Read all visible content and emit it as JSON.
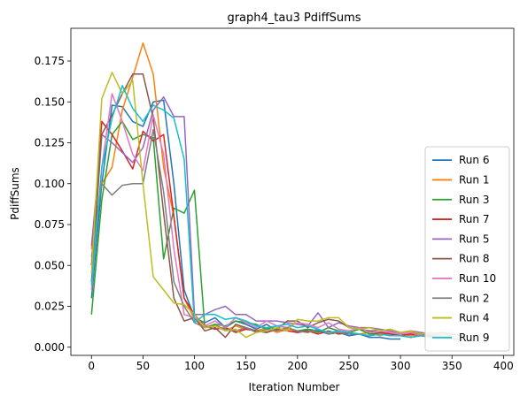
{
  "chart_data": {
    "type": "line",
    "title": "graph4_tau3 PdiffSums",
    "xlabel": "Iteration Number",
    "ylabel": "PdiffSums",
    "xlim": [
      -20,
      410
    ],
    "ylim": [
      -0.005,
      0.195
    ],
    "xticks": [
      0,
      50,
      100,
      150,
      200,
      250,
      300,
      350,
      400
    ],
    "xtick_labels": [
      "0",
      "50",
      "100",
      "150",
      "200",
      "250",
      "300",
      "350",
      "400"
    ],
    "yticks": [
      0.0,
      0.025,
      0.05,
      0.075,
      0.1,
      0.125,
      0.15,
      0.175
    ],
    "ytick_labels": [
      "0.000",
      "0.025",
      "0.050",
      "0.075",
      "0.100",
      "0.125",
      "0.150",
      "0.175"
    ],
    "grid": false,
    "legend_position": "lower-right",
    "series": [
      {
        "name": "Run 6",
        "color": "#1f77b4",
        "x": [
          0,
          10,
          20,
          30,
          40,
          50,
          60,
          70,
          80,
          90,
          100,
          110,
          120,
          130,
          140,
          150,
          160,
          170,
          180,
          190,
          200,
          210,
          220,
          230,
          240,
          250,
          260,
          270,
          280,
          290,
          300
        ],
        "y": [
          0.03,
          0.1,
          0.148,
          0.147,
          0.138,
          0.135,
          0.15,
          0.151,
          0.1,
          0.035,
          0.018,
          0.015,
          0.018,
          0.012,
          0.016,
          0.014,
          0.011,
          0.014,
          0.01,
          0.012,
          0.009,
          0.011,
          0.01,
          0.008,
          0.009,
          0.007,
          0.008,
          0.006,
          0.006,
          0.005,
          0.005
        ]
      },
      {
        "name": "Run 1",
        "color": "#ff7f0e",
        "x": [
          0,
          10,
          20,
          30,
          40,
          50,
          60,
          70,
          80,
          90,
          100,
          110,
          120,
          130,
          140,
          150,
          160,
          170,
          180,
          190,
          200,
          210,
          220,
          230,
          240,
          250,
          260,
          270,
          280,
          290,
          300,
          310,
          320,
          330,
          340,
          350
        ],
        "y": [
          0.06,
          0.1,
          0.11,
          0.145,
          0.165,
          0.186,
          0.167,
          0.11,
          0.08,
          0.03,
          0.017,
          0.012,
          0.014,
          0.01,
          0.013,
          0.011,
          0.01,
          0.012,
          0.009,
          0.011,
          0.01,
          0.009,
          0.011,
          0.008,
          0.01,
          0.009,
          0.008,
          0.009,
          0.007,
          0.009,
          0.008,
          0.007,
          0.008,
          0.006,
          0.007,
          0.006
        ]
      },
      {
        "name": "Run 3",
        "color": "#2ca02c",
        "x": [
          0,
          10,
          20,
          30,
          40,
          50,
          60,
          70,
          80,
          90,
          100,
          110,
          120,
          130,
          140,
          150,
          160,
          170,
          180,
          190,
          200,
          210,
          220,
          230,
          240,
          250,
          260,
          270,
          280,
          290,
          300,
          310,
          320,
          330,
          340
        ],
        "y": [
          0.02,
          0.09,
          0.13,
          0.138,
          0.127,
          0.13,
          0.128,
          0.054,
          0.085,
          0.082,
          0.096,
          0.012,
          0.014,
          0.013,
          0.016,
          0.015,
          0.014,
          0.011,
          0.013,
          0.012,
          0.01,
          0.011,
          0.009,
          0.012,
          0.01,
          0.009,
          0.011,
          0.008,
          0.009,
          0.008,
          0.007,
          0.008,
          0.007,
          0.006,
          0.006
        ]
      },
      {
        "name": "Run 7",
        "color": "#d62728",
        "x": [
          0,
          10,
          20,
          30,
          40,
          50,
          60,
          70,
          80,
          90,
          100,
          110,
          120,
          130,
          140,
          150,
          160,
          170,
          180,
          190,
          200,
          210,
          220,
          230,
          240,
          250,
          260,
          270,
          280,
          290,
          300,
          310,
          320,
          330
        ],
        "y": [
          0.05,
          0.138,
          0.13,
          0.12,
          0.109,
          0.132,
          0.126,
          0.13,
          0.08,
          0.03,
          0.02,
          0.013,
          0.011,
          0.012,
          0.009,
          0.011,
          0.01,
          0.009,
          0.011,
          0.01,
          0.009,
          0.01,
          0.008,
          0.01,
          0.008,
          0.009,
          0.008,
          0.007,
          0.009,
          0.008,
          0.007,
          0.008,
          0.007,
          0.006
        ]
      },
      {
        "name": "Run 5",
        "color": "#9467bd",
        "x": [
          0,
          10,
          20,
          30,
          40,
          50,
          60,
          70,
          80,
          90,
          100,
          110,
          120,
          130,
          140,
          150,
          160,
          170,
          180,
          190,
          200,
          210,
          220,
          230,
          240,
          250,
          260,
          270,
          280,
          290,
          300,
          310,
          320,
          330,
          340,
          350,
          360
        ],
        "y": [
          0.062,
          0.13,
          0.125,
          0.119,
          0.113,
          0.122,
          0.145,
          0.153,
          0.141,
          0.141,
          0.02,
          0.02,
          0.023,
          0.025,
          0.02,
          0.02,
          0.016,
          0.016,
          0.016,
          0.015,
          0.014,
          0.013,
          0.021,
          0.012,
          0.015,
          0.013,
          0.012,
          0.012,
          0.011,
          0.01,
          0.009,
          0.01,
          0.009,
          0.008,
          0.009,
          0.008,
          0.007
        ]
      },
      {
        "name": "Run 8",
        "color": "#8c564b",
        "x": [
          0,
          10,
          20,
          30,
          40,
          50,
          60,
          70,
          80,
          90,
          100,
          110,
          120,
          130,
          140,
          150,
          160,
          170,
          180,
          190,
          200,
          210,
          220,
          230,
          240,
          250,
          260,
          270,
          280,
          290,
          300,
          310,
          320,
          330,
          340
        ],
        "y": [
          0.04,
          0.13,
          0.142,
          0.155,
          0.167,
          0.167,
          0.14,
          0.082,
          0.03,
          0.016,
          0.018,
          0.01,
          0.012,
          0.006,
          0.014,
          0.012,
          0.01,
          0.009,
          0.011,
          0.016,
          0.016,
          0.012,
          0.015,
          0.017,
          0.016,
          0.012,
          0.011,
          0.01,
          0.01,
          0.009,
          0.008,
          0.009,
          0.008,
          0.007,
          0.006
        ]
      },
      {
        "name": "Run 10",
        "color": "#e377c2",
        "x": [
          0,
          10,
          20,
          30,
          40,
          50,
          60,
          70,
          80,
          90,
          100,
          110,
          120,
          130,
          140,
          150,
          160,
          170,
          180,
          190,
          200,
          210,
          220,
          230,
          240,
          250,
          260,
          270,
          280,
          290,
          300,
          310,
          320,
          330,
          340
        ],
        "y": [
          0.035,
          0.11,
          0.155,
          0.138,
          0.118,
          0.108,
          0.142,
          0.118,
          0.06,
          0.02,
          0.018,
          0.013,
          0.016,
          0.012,
          0.018,
          0.015,
          0.012,
          0.016,
          0.013,
          0.012,
          0.015,
          0.014,
          0.012,
          0.015,
          0.011,
          0.01,
          0.012,
          0.009,
          0.01,
          0.009,
          0.008,
          0.009,
          0.007,
          0.008,
          0.007
        ]
      },
      {
        "name": "Run 2",
        "color": "#7f7f7f",
        "x": [
          0,
          10,
          20,
          30,
          40,
          50,
          60,
          70,
          80,
          90,
          100,
          110,
          120,
          130,
          140,
          150,
          160,
          170,
          180,
          190,
          200,
          210,
          220,
          230,
          240,
          250,
          260,
          270,
          280,
          290,
          300,
          310,
          320,
          330
        ],
        "y": [
          0.055,
          0.1,
          0.093,
          0.099,
          0.1,
          0.1,
          0.133,
          0.095,
          0.04,
          0.025,
          0.015,
          0.012,
          0.013,
          0.011,
          0.01,
          0.012,
          0.009,
          0.011,
          0.01,
          0.012,
          0.01,
          0.009,
          0.011,
          0.008,
          0.009,
          0.008,
          0.008,
          0.007,
          0.008,
          0.007,
          0.007,
          0.006,
          0.007,
          0.006
        ]
      },
      {
        "name": "Run 4",
        "color": "#bcbd22",
        "x": [
          0,
          10,
          20,
          30,
          40,
          50,
          60,
          70,
          80,
          90,
          100,
          110,
          120,
          130,
          140,
          150,
          160,
          170,
          180,
          190,
          200,
          210,
          220,
          230,
          240,
          250,
          260,
          270,
          280,
          290,
          300,
          310,
          320,
          330,
          340,
          350
        ],
        "y": [
          0.045,
          0.152,
          0.168,
          0.155,
          0.163,
          0.1,
          0.043,
          0.035,
          0.027,
          0.026,
          0.02,
          0.012,
          0.013,
          0.01,
          0.011,
          0.006,
          0.009,
          0.01,
          0.012,
          0.01,
          0.017,
          0.016,
          0.016,
          0.018,
          0.018,
          0.012,
          0.011,
          0.012,
          0.01,
          0.011,
          0.009,
          0.01,
          0.008,
          0.009,
          0.008,
          0.007
        ]
      },
      {
        "name": "Run 9",
        "color": "#17becf",
        "x": [
          0,
          10,
          20,
          30,
          40,
          50,
          60,
          70,
          80,
          90,
          100,
          110,
          120,
          130,
          140,
          150,
          160,
          170,
          180,
          190,
          200,
          210,
          220,
          230,
          240,
          250,
          260,
          270,
          280,
          290,
          300,
          310,
          320,
          330,
          340,
          350,
          360
        ],
        "y": [
          0.038,
          0.11,
          0.14,
          0.16,
          0.146,
          0.138,
          0.148,
          0.145,
          0.14,
          0.115,
          0.015,
          0.02,
          0.02,
          0.017,
          0.018,
          0.016,
          0.013,
          0.012,
          0.013,
          0.014,
          0.012,
          0.013,
          0.011,
          0.009,
          0.01,
          0.009,
          0.008,
          0.007,
          0.008,
          0.007,
          0.007,
          0.006,
          0.007,
          0.006,
          0.006,
          0.005,
          0.005
        ]
      }
    ]
  }
}
